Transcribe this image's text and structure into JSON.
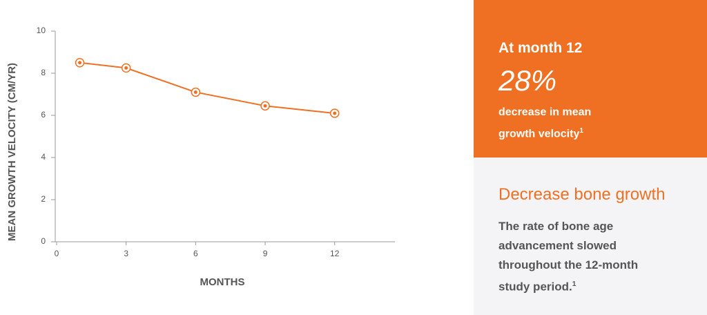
{
  "chart_data": {
    "type": "line",
    "y_label": "MEAN GROWTH VELOCITY (CM/YR)",
    "x_label": "MONTHS",
    "x": [
      1,
      3,
      6,
      9,
      12
    ],
    "series": [
      {
        "color": "#f07023",
        "values": [
          8.5,
          8.25,
          7.1,
          6.45,
          6.1
        ]
      }
    ],
    "xlim": [
      0,
      14.6
    ],
    "xticks": [
      0,
      3,
      6,
      9,
      12
    ],
    "ylim": [
      0,
      10
    ],
    "yticks": [
      0,
      2,
      4,
      6,
      8,
      10
    ]
  },
  "highlight": {
    "heading": "At month 12",
    "stat": "28%",
    "text": "decrease in mean growth velocity",
    "sup": "1"
  },
  "note": {
    "heading": "Decrease bone growth",
    "text": "The rate of bone age advancement slowed throughout the 12-month study period.",
    "sup": "1"
  }
}
